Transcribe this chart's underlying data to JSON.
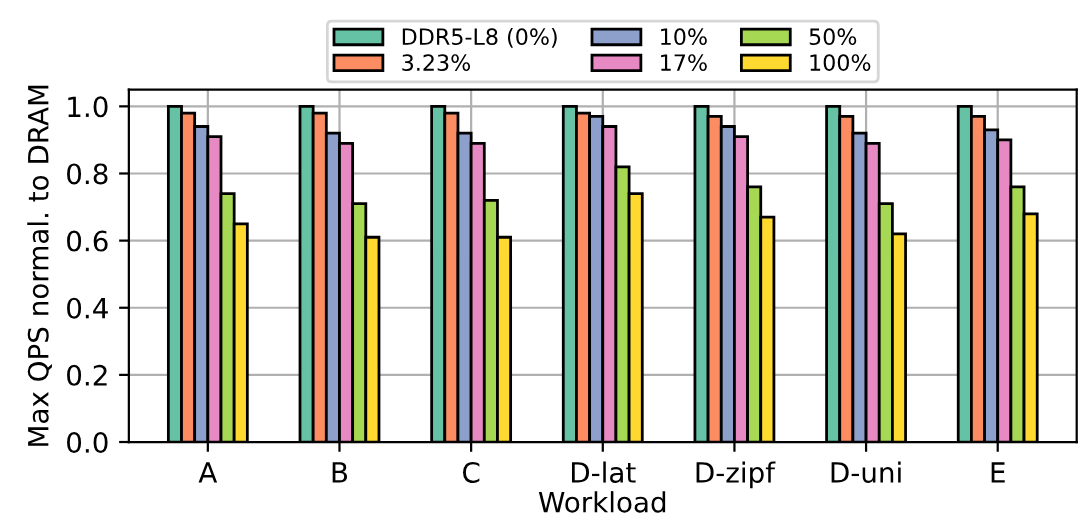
{
  "chart_data": {
    "type": "bar",
    "xlabel": "Workload",
    "ylabel": "Max QPS normal. to DRAM",
    "categories": [
      "A",
      "B",
      "C",
      "D-lat",
      "D-zipf",
      "D-uni",
      "E"
    ],
    "series": [
      {
        "name": "DDR5-L8 (0%)",
        "color": "#66c2a5",
        "values": [
          1.0,
          1.0,
          1.0,
          1.0,
          1.0,
          1.0,
          1.0
        ]
      },
      {
        "name": "3.23%",
        "color": "#fc8d62",
        "values": [
          0.98,
          0.98,
          0.98,
          0.98,
          0.97,
          0.97,
          0.97
        ]
      },
      {
        "name": "10%",
        "color": "#8da0cb",
        "values": [
          0.94,
          0.92,
          0.92,
          0.97,
          0.94,
          0.92,
          0.93
        ]
      },
      {
        "name": "17%",
        "color": "#e78ac3",
        "values": [
          0.91,
          0.89,
          0.89,
          0.94,
          0.91,
          0.89,
          0.9
        ]
      },
      {
        "name": "50%",
        "color": "#a6d854",
        "values": [
          0.74,
          0.71,
          0.72,
          0.82,
          0.76,
          0.71,
          0.76
        ]
      },
      {
        "name": "100%",
        "color": "#ffd92f",
        "values": [
          0.65,
          0.61,
          0.61,
          0.74,
          0.67,
          0.62,
          0.68
        ]
      }
    ],
    "ylim": [
      0,
      1.05
    ],
    "yticks": [
      {
        "value": 0,
        "label": "0.0"
      },
      0.2,
      0.4,
      0.6,
      0.8,
      {
        "value": 1,
        "label": "1.0"
      }
    ],
    "grid": true,
    "legend": "top"
  }
}
